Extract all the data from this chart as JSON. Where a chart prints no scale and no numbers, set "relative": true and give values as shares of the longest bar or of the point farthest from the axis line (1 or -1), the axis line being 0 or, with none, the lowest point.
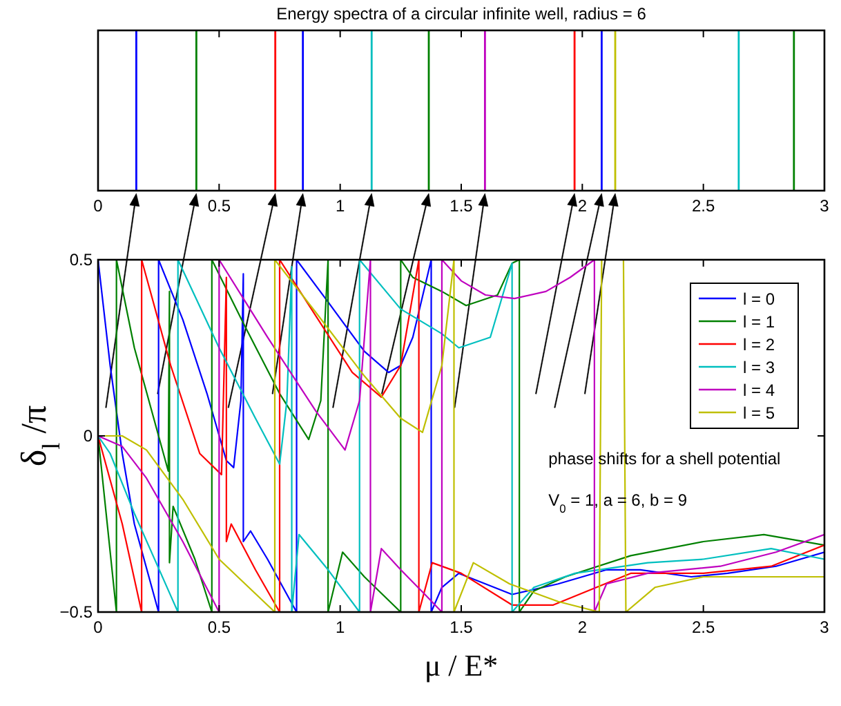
{
  "chart_data": [
    {
      "type": "bar",
      "title": "Energy spectra of a circular infinite well, radius = 6",
      "relative": true,
      "xlim": [
        0,
        3
      ],
      "xticks": [
        0,
        0.5,
        1,
        1.5,
        2,
        2.5,
        3
      ],
      "x": [
        0.158,
        0.406,
        0.732,
        0.846,
        1.13,
        1.366,
        1.598,
        1.968,
        2.08,
        2.136,
        2.646,
        2.874
      ],
      "values": [
        1,
        1,
        1,
        1,
        1,
        1,
        1,
        1,
        1,
        1,
        1,
        1
      ],
      "colors": [
        "#0000ff",
        "#008000",
        "#ff0000",
        "#0000ff",
        "#00bfbf",
        "#008000",
        "#bf00bf",
        "#ff0000",
        "#0000ff",
        "#bfbf00",
        "#00bfbf",
        "#008000"
      ]
    },
    {
      "type": "line",
      "xlabel": "μ / E*",
      "ylabel": "δ$_{l}$ /π",
      "xlim": [
        0,
        3
      ],
      "ylim": [
        -0.5,
        0.5
      ],
      "xticks": [
        0,
        0.5,
        1,
        1.5,
        2,
        2.5,
        3
      ],
      "yticks": [
        {
          "value": -0.5,
          "label": "−0.5"
        },
        0,
        0.5
      ],
      "legend": "top right",
      "annotations": [
        "phase shifts for a shell potential",
        "V$_{0}$ = 1, a = 6, b = 9"
      ],
      "series": [
        {
          "name": "l = 0",
          "color": "#0000ff",
          "x": [
            0,
            0.05,
            0.1,
            0.15,
            0.25,
            0.25,
            0.35,
            0.45,
            0.53,
            0.56,
            0.59,
            0.6,
            0.6,
            0.63,
            0.7,
            0.82,
            0.82,
            0.95,
            1.1,
            1.2,
            1.25,
            1.3,
            1.376,
            1.376,
            1.42,
            1.49,
            1.6,
            1.71,
            1.9,
            2.1,
            2.24,
            2.45,
            2.6,
            2.8,
            3
          ],
          "values": [
            0.5,
            0.2,
            -0.05,
            -0.25,
            -0.5,
            0.5,
            0.33,
            0.12,
            -0.07,
            -0.09,
            0.1,
            0.46,
            -0.3,
            -0.27,
            -0.35,
            -0.5,
            0.5,
            0.38,
            0.24,
            0.18,
            0.2,
            0.28,
            0.5,
            -0.5,
            -0.43,
            -0.39,
            -0.42,
            -0.45,
            -0.42,
            -0.38,
            -0.38,
            -0.4,
            -0.39,
            -0.37,
            -0.33
          ]
        },
        {
          "name": "l = 1",
          "color": "#008000",
          "x": [
            0,
            0.076,
            0.076,
            0.15,
            0.29,
            0.295,
            0.295,
            0.31,
            0.4,
            0.47,
            0.47,
            0.6,
            0.75,
            0.87,
            0.92,
            0.95,
            0.95,
            1.01,
            1.1,
            1.25,
            1.25,
            1.3,
            1.42,
            1.52,
            1.65,
            1.71,
            1.74,
            1.74,
            1.8,
            1.93,
            2.2,
            2.5,
            2.75,
            3
          ],
          "values": [
            0,
            -0.5,
            0.5,
            0.25,
            -0.1,
            0.41,
            -0.36,
            -0.2,
            -0.35,
            -0.5,
            0.5,
            0.32,
            0.12,
            -0.01,
            0.1,
            0.5,
            -0.5,
            -0.33,
            -0.4,
            -0.5,
            0.5,
            0.45,
            0.41,
            0.37,
            0.4,
            0.49,
            0.5,
            -0.5,
            -0.44,
            -0.4,
            -0.34,
            -0.3,
            -0.28,
            -0.31
          ]
        },
        {
          "name": "l = 2",
          "color": "#ff0000",
          "x": [
            0,
            0.1,
            0.18,
            0.18,
            0.3,
            0.42,
            0.51,
            0.53,
            0.53,
            0.55,
            0.65,
            0.75,
            0.75,
            0.9,
            1.05,
            1.17,
            1.25,
            1.325,
            1.325,
            1.38,
            1.5,
            1.71,
            1.88,
            2.2,
            2.5,
            2.78,
            3
          ],
          "values": [
            0,
            -0.25,
            -0.5,
            0.5,
            0.2,
            -0.05,
            -0.11,
            0.45,
            -0.3,
            -0.25,
            -0.38,
            -0.5,
            0.5,
            0.34,
            0.18,
            0.11,
            0.2,
            0.5,
            -0.5,
            -0.36,
            -0.39,
            -0.48,
            -0.48,
            -0.39,
            -0.39,
            -0.37,
            -0.31
          ]
        },
        {
          "name": "l = 3",
          "color": "#00bfbf",
          "x": [
            0,
            0.05,
            0.15,
            0.33,
            0.33,
            0.5,
            0.65,
            0.75,
            0.78,
            0.8,
            0.8,
            0.83,
            0.95,
            1.08,
            1.08,
            1.25,
            1.42,
            1.49,
            1.62,
            1.71,
            1.71,
            1.8,
            1.97,
            2.27,
            2.5,
            2.78,
            3
          ],
          "values": [
            0,
            -0.05,
            -0.22,
            -0.5,
            0.5,
            0.25,
            0.05,
            -0.08,
            0.1,
            0.48,
            -0.5,
            -0.28,
            -0.38,
            -0.5,
            0.5,
            0.36,
            0.29,
            0.25,
            0.28,
            0.49,
            -0.5,
            -0.43,
            -0.39,
            -0.36,
            -0.35,
            -0.32,
            -0.35
          ]
        },
        {
          "name": "l = 4",
          "color": "#bf00bf",
          "x": [
            0,
            0.1,
            0.2,
            0.35,
            0.5,
            0.5,
            0.7,
            0.9,
            1.02,
            1.08,
            1.125,
            1.125,
            1.17,
            1.25,
            1.35,
            1.42,
            1.42,
            1.5,
            1.6,
            1.72,
            1.85,
            1.95,
            2.05,
            2.05,
            2.1,
            2.27,
            2.57,
            2.8,
            3
          ],
          "values": [
            0,
            -0.03,
            -0.12,
            -0.3,
            -0.5,
            0.5,
            0.28,
            0.07,
            -0.04,
            0.1,
            0.5,
            -0.5,
            -0.32,
            -0.38,
            -0.45,
            -0.5,
            0.5,
            0.44,
            0.4,
            0.39,
            0.41,
            0.45,
            0.5,
            -0.5,
            -0.42,
            -0.39,
            -0.37,
            -0.33,
            -0.28
          ]
        },
        {
          "name": "l = 5",
          "color": "#bfbf00",
          "x": [
            0,
            0.1,
            0.2,
            0.35,
            0.5,
            0.73,
            0.73,
            0.9,
            1.1,
            1.25,
            1.34,
            1.42,
            1.47,
            1.47,
            1.55,
            1.7,
            1.9,
            2.07,
            2.08,
            2.17,
            2.18,
            2.3,
            2.5,
            2.75,
            3
          ],
          "values": [
            0,
            0,
            -0.04,
            -0.18,
            -0.35,
            -0.5,
            0.5,
            0.35,
            0.17,
            0.05,
            0.01,
            0.2,
            0.5,
            -0.5,
            -0.36,
            -0.42,
            -0.47,
            -0.5,
            0.5,
            0.5,
            -0.5,
            -0.43,
            -0.4,
            -0.4,
            -0.4
          ]
        }
      ]
    }
  ]
}
